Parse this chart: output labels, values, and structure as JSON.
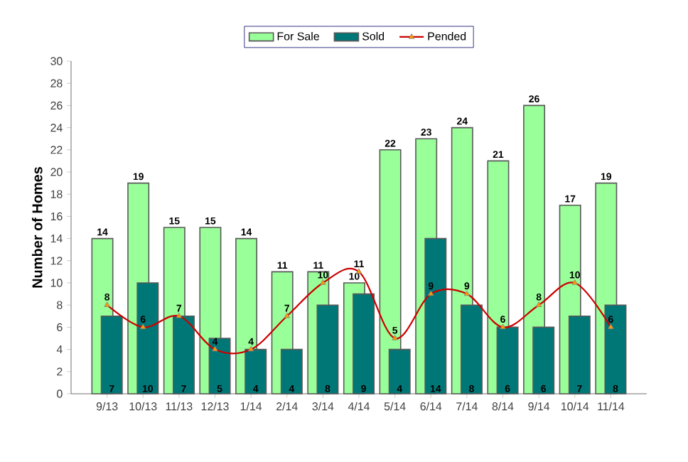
{
  "chart_data": {
    "type": "bar",
    "ylabel": "Number of Homes",
    "categories": [
      "9/13",
      "10/13",
      "11/13",
      "12/13",
      "1/14",
      "2/14",
      "3/14",
      "4/14",
      "5/14",
      "6/14",
      "7/14",
      "8/14",
      "9/14",
      "10/14",
      "11/14"
    ],
    "series": [
      {
        "name": "For Sale",
        "color": "#99ff99",
        "values": [
          14,
          19,
          15,
          15,
          14,
          11,
          11,
          10,
          22,
          23,
          24,
          21,
          26,
          17,
          19
        ]
      },
      {
        "name": "Sold",
        "color": "#007777",
        "values": [
          7,
          10,
          7,
          5,
          4,
          4,
          8,
          9,
          4,
          14,
          8,
          6,
          6,
          7,
          8
        ]
      },
      {
        "name": "Pended",
        "type": "line",
        "color": "#cc0000",
        "marker": "triangle",
        "values": [
          8,
          6,
          7,
          4,
          4,
          7,
          10,
          11,
          5,
          9,
          9,
          6,
          8,
          10,
          6
        ]
      }
    ],
    "ylim": [
      0,
      30
    ],
    "yticks": [
      0,
      2,
      4,
      6,
      8,
      10,
      12,
      14,
      16,
      18,
      20,
      22,
      24,
      26,
      28,
      30
    ],
    "data_labels": true,
    "legend": "top"
  }
}
